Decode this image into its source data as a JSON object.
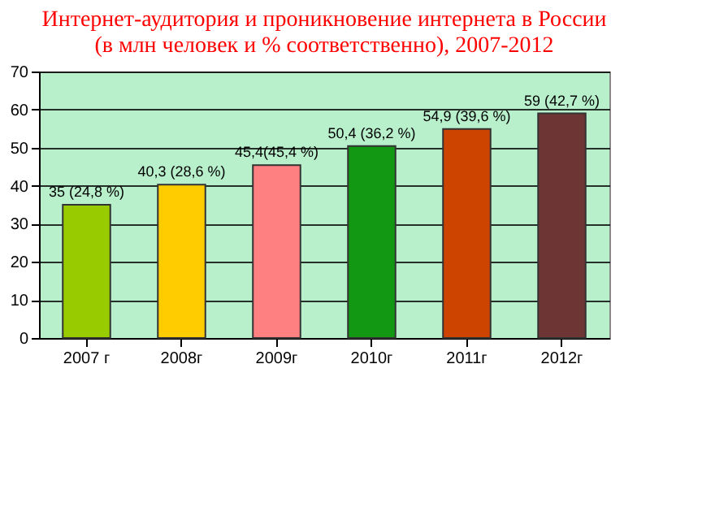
{
  "chart_data": {
    "type": "bar",
    "title": [
      "Интернет-аудитория и проникновение интернета в России",
      "(в млн человек и % соответственно), 2007-2012"
    ],
    "categories": [
      "2007 г",
      "2008г",
      "2009г",
      "2010г",
      "2011г",
      "2012г"
    ],
    "values": [
      35,
      40.3,
      45.4,
      50.4,
      54.9,
      59
    ],
    "colors": [
      "#99cc00",
      "#ffcc00",
      "#ff8080",
      "#129812",
      "#cc4400",
      "#6e3535"
    ],
    "value_labels": [
      "35 (24,8 %)",
      "40,3 (28,6 %)",
      "45,4(45,4 %)",
      "50,4 (36,2 %)",
      "54,9 (39,6 %)",
      "59 (42,7 %)"
    ],
    "ylim": [
      0,
      70
    ],
    "yticks": [
      0,
      10,
      20,
      30,
      40,
      50,
      60,
      70
    ],
    "grid": "y"
  }
}
